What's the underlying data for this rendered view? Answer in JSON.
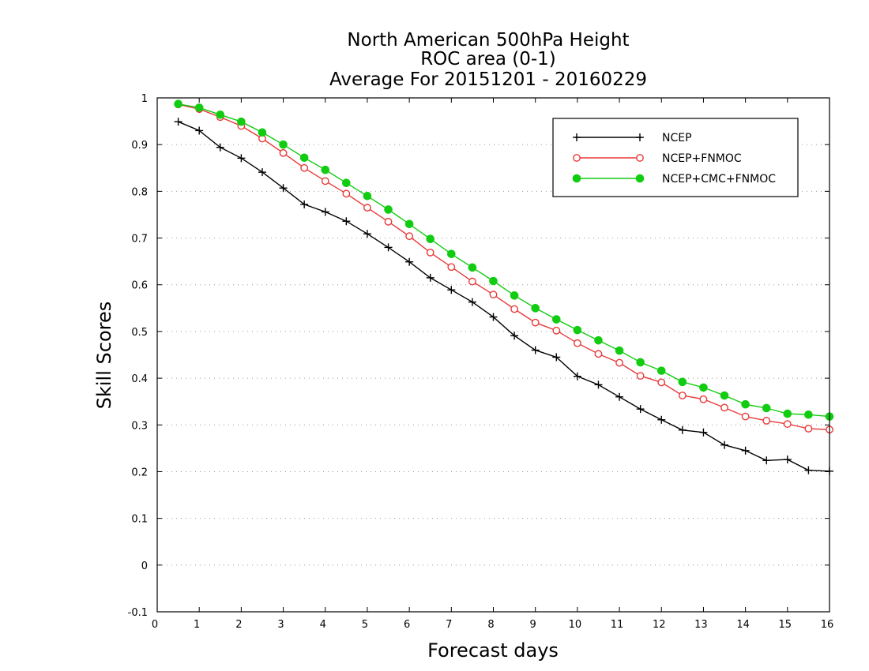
{
  "chart_data": {
    "type": "line",
    "title_lines": [
      "North American 500hPa Height",
      "ROC area (0-1)",
      "Average For 20151201 - 20160229"
    ],
    "xlabel": "Forecast days",
    "ylabel": "Skill Scores",
    "xlim": [
      0,
      16
    ],
    "ylim": [
      -0.1,
      1
    ],
    "x_ticks": [
      "0",
      "1",
      "2",
      "3",
      "4",
      "5",
      "6",
      "7",
      "8",
      "9",
      "10",
      "11",
      "12",
      "13",
      "14",
      "15",
      "16"
    ],
    "y_ticks": [
      "-0.1",
      "0",
      "0.1",
      "0.2",
      "0.3",
      "0.4",
      "0.5",
      "0.6",
      "0.7",
      "0.8",
      "0.9",
      "1"
    ],
    "grid": "horizontal dotted",
    "legend_placement": "top-right",
    "x": [
      0.5,
      1,
      1.5,
      2,
      2.5,
      3,
      3.5,
      4,
      4.5,
      5,
      5.5,
      6,
      6.5,
      7,
      7.5,
      8,
      8.5,
      9,
      9.5,
      10,
      10.5,
      11,
      11.5,
      12,
      12.5,
      13,
      13.5,
      14,
      14.5,
      15,
      15.5,
      16
    ],
    "series": [
      {
        "name": "NCEP",
        "color": "#000000",
        "marker": "plus",
        "values": [
          0.949,
          0.93,
          0.894,
          0.871,
          0.841,
          0.807,
          0.772,
          0.756,
          0.736,
          0.709,
          0.68,
          0.649,
          0.615,
          0.589,
          0.563,
          0.531,
          0.491,
          0.46,
          0.445,
          0.404,
          0.386,
          0.36,
          0.334,
          0.311,
          0.289,
          0.284,
          0.257,
          0.245,
          0.224,
          0.226,
          0.203,
          0.201
        ]
      },
      {
        "name": "NCEP+FNMOC",
        "color": "#e83a3a",
        "marker": "open-circle",
        "values": [
          0.986,
          0.976,
          0.959,
          0.94,
          0.913,
          0.882,
          0.85,
          0.822,
          0.795,
          0.765,
          0.735,
          0.704,
          0.669,
          0.638,
          0.607,
          0.579,
          0.548,
          0.519,
          0.502,
          0.475,
          0.452,
          0.433,
          0.405,
          0.391,
          0.363,
          0.355,
          0.337,
          0.318,
          0.309,
          0.302,
          0.292,
          0.29
        ]
      },
      {
        "name": "NCEP+CMC+FNMOC",
        "color": "#11cc11",
        "marker": "filled-circle",
        "values": [
          0.987,
          0.979,
          0.964,
          0.949,
          0.926,
          0.9,
          0.872,
          0.846,
          0.818,
          0.79,
          0.761,
          0.73,
          0.698,
          0.666,
          0.637,
          0.608,
          0.577,
          0.55,
          0.526,
          0.503,
          0.481,
          0.459,
          0.434,
          0.416,
          0.392,
          0.38,
          0.363,
          0.344,
          0.336,
          0.324,
          0.322,
          0.318
        ]
      }
    ]
  }
}
